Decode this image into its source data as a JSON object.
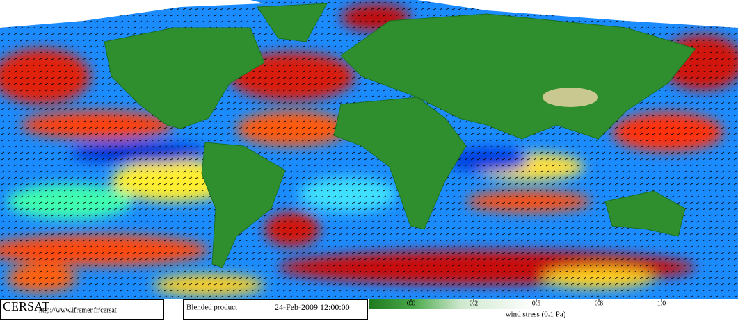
{
  "logo": "CERSAT",
  "url": "http://www.ifremer.fr/cersat",
  "product": "Blended product",
  "datetime": "24-Feb-2009 12:00:00",
  "colorbar": {
    "ticks": [
      {
        "value": 0,
        "label": "0.0"
      },
      0.2,
      0.5,
      0.8,
      {
        "value": 1,
        "label": "1.0"
      }
    ],
    "label": "wind stress (0.1 Pa)"
  }
}
